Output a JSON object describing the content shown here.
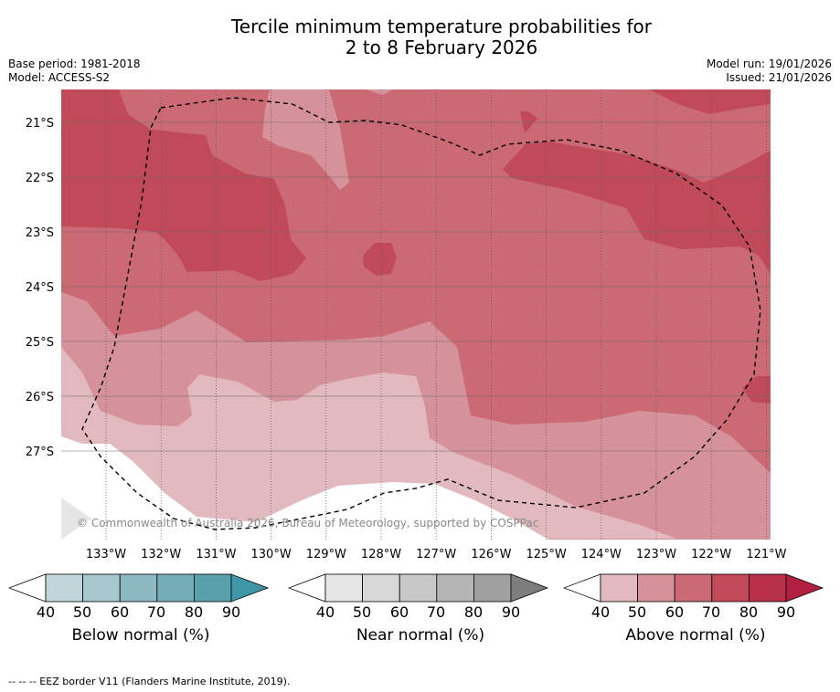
{
  "title": {
    "line1": "Tercile minimum temperature probabilities for",
    "line2": "2 to 8 February 2026"
  },
  "meta": {
    "base_period": "Base period: 1981-2018",
    "model": "Model: ACCESS-S2",
    "model_run": "Model run: 19/01/2026",
    "issued": "Issued: 21/01/2026"
  },
  "map": {
    "lat_labels": [
      "21°S",
      "22°S",
      "23°S",
      "24°S",
      "25°S",
      "26°S",
      "27°S"
    ],
    "lon_labels": [
      "133°W",
      "132°W",
      "131°W",
      "130°W",
      "129°W",
      "128°W",
      "127°W",
      "126°W",
      "125°W",
      "124°W",
      "123°W",
      "122°W",
      "121°W"
    ],
    "copyright": "© Commonwealth of Australia 2026, Bureau of Meteorology, supported by COSPPac",
    "category_colors": {
      "above_40": "#e1b9bf",
      "above_50": "#d5929a",
      "above_60": "#cb6975",
      "above_70": "#c04a59",
      "near": "#e6e6e6",
      "land": "#ffffff"
    }
  },
  "colorbars": [
    {
      "title": "Below normal (%)",
      "ticks": [
        "40",
        "50",
        "60",
        "70",
        "80",
        "90"
      ],
      "colors": [
        "#c0d6db",
        "#a7c8ce",
        "#8cb8c1",
        "#74adb7",
        "#5ba0ad",
        "#3e96a6"
      ]
    },
    {
      "title": "Near normal (%)",
      "ticks": [
        "40",
        "50",
        "60",
        "70",
        "80",
        "90"
      ],
      "colors": [
        "#e6e6e6",
        "#d8d8d8",
        "#c8c8c8",
        "#b4b4b4",
        "#a0a0a0",
        "#7d7d7d"
      ]
    },
    {
      "title": "Above normal (%)",
      "ticks": [
        "40",
        "50",
        "60",
        "70",
        "80",
        "90"
      ],
      "colors": [
        "#e1b9bf",
        "#d5929a",
        "#cb6975",
        "#c04a59",
        "#b83049",
        "#b01f3f"
      ]
    }
  ],
  "footer": "--  --  -- EEZ border V11 (Flanders Marine Institute, 2019)."
}
